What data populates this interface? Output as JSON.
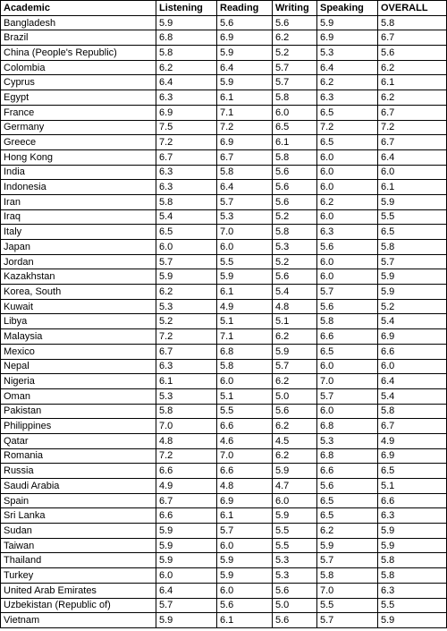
{
  "table": {
    "headers": [
      "Academic",
      "Listening",
      "Reading",
      "Writing",
      "Speaking",
      "OVERALL"
    ],
    "rows": [
      [
        "Bangladesh",
        "5.9",
        "5.6",
        "5.6",
        "5.9",
        "5.8"
      ],
      [
        "Brazil",
        "6.8",
        "6.9",
        "6.2",
        "6.9",
        "6.7"
      ],
      [
        "China (People's Republic)",
        "5.8",
        "5.9",
        "5.2",
        "5.3",
        "5.6"
      ],
      [
        "Colombia",
        "6.2",
        "6.4",
        "5.7",
        "6.4",
        "6.2"
      ],
      [
        "Cyprus",
        "6.4",
        "5.9",
        "5.7",
        "6.2",
        "6.1"
      ],
      [
        "Egypt",
        "6.3",
        "6.1",
        "5.8",
        "6.3",
        "6.2"
      ],
      [
        "France",
        "6.9",
        "7.1",
        "6.0",
        "6.5",
        "6.7"
      ],
      [
        "Germany",
        "7.5",
        "7.2",
        "6.5",
        "7.2",
        "7.2"
      ],
      [
        "Greece",
        "7.2",
        "6.9",
        "6.1",
        "6.5",
        "6.7"
      ],
      [
        "Hong Kong",
        "6.7",
        "6.7",
        "5.8",
        "6.0",
        "6.4"
      ],
      [
        "India",
        "6.3",
        "5.8",
        "5.6",
        "6.0",
        "6.0"
      ],
      [
        "Indonesia",
        "6.3",
        "6.4",
        "5.6",
        "6.0",
        "6.1"
      ],
      [
        "Iran",
        "5.8",
        "5.7",
        "5.6",
        "6.2",
        "5.9"
      ],
      [
        "Iraq",
        "5.4",
        "5.3",
        "5.2",
        "6.0",
        "5.5"
      ],
      [
        "Italy",
        "6.5",
        "7.0",
        "5.8",
        "6.3",
        "6.5"
      ],
      [
        "Japan",
        "6.0",
        "6.0",
        "5.3",
        "5.6",
        "5.8"
      ],
      [
        "Jordan",
        "5.7",
        "5.5",
        "5.2",
        "6.0",
        "5.7"
      ],
      [
        "Kazakhstan",
        "5.9",
        "5.9",
        "5.6",
        "6.0",
        "5.9"
      ],
      [
        "Korea, South",
        "6.2",
        "6.1",
        "5.4",
        "5.7",
        "5.9"
      ],
      [
        "Kuwait",
        "5.3",
        "4.9",
        "4.8",
        "5.6",
        "5.2"
      ],
      [
        "Libya",
        "5.2",
        "5.1",
        "5.1",
        "5.8",
        "5.4"
      ],
      [
        "Malaysia",
        "7.2",
        "7.1",
        "6.2",
        "6.6",
        "6.9"
      ],
      [
        "Mexico",
        "6.7",
        "6.8",
        "5.9",
        "6.5",
        "6.6"
      ],
      [
        "Nepal",
        "6.3",
        "5.8",
        "5.7",
        "6.0",
        "6.0"
      ],
      [
        "Nigeria",
        "6.1",
        "6.0",
        "6.2",
        "7.0",
        "6.4"
      ],
      [
        "Oman",
        "5.3",
        "5.1",
        "5.0",
        "5.7",
        "5.4"
      ],
      [
        "Pakistan",
        "5.8",
        "5.5",
        "5.6",
        "6.0",
        "5.8"
      ],
      [
        "Philippines",
        "7.0",
        "6.6",
        "6.2",
        "6.8",
        "6.7"
      ],
      [
        "Qatar",
        "4.8",
        "4.6",
        "4.5",
        "5.3",
        "4.9"
      ],
      [
        "Romania",
        "7.2",
        "7.0",
        "6.2",
        "6.8",
        "6.9"
      ],
      [
        "Russia",
        "6.6",
        "6.6",
        "5.9",
        "6.6",
        "6.5"
      ],
      [
        "Saudi Arabia",
        "4.9",
        "4.8",
        "4.7",
        "5.6",
        "5.1"
      ],
      [
        "Spain",
        "6.7",
        "6.9",
        "6.0",
        "6.5",
        "6.6"
      ],
      [
        "Sri Lanka",
        "6.6",
        "6.1",
        "5.9",
        "6.5",
        "6.3"
      ],
      [
        "Sudan",
        "5.9",
        "5.7",
        "5.5",
        "6.2",
        "5.9"
      ],
      [
        "Taiwan",
        "5.9",
        "6.0",
        "5.5",
        "5.9",
        "5.9"
      ],
      [
        "Thailand",
        "5.9",
        "5.9",
        "5.3",
        "5.7",
        "5.8"
      ],
      [
        "Turkey",
        "6.0",
        "5.9",
        "5.3",
        "5.8",
        "5.8"
      ],
      [
        "United Arab Emirates",
        "6.4",
        "6.0",
        "5.6",
        "7.0",
        "6.3"
      ],
      [
        "Uzbekistan (Republic of)",
        "5.7",
        "5.6",
        "5.0",
        "5.5",
        "5.5"
      ],
      [
        "Vietnam",
        "5.9",
        "6.1",
        "5.6",
        "5.7",
        "5.9"
      ]
    ]
  }
}
